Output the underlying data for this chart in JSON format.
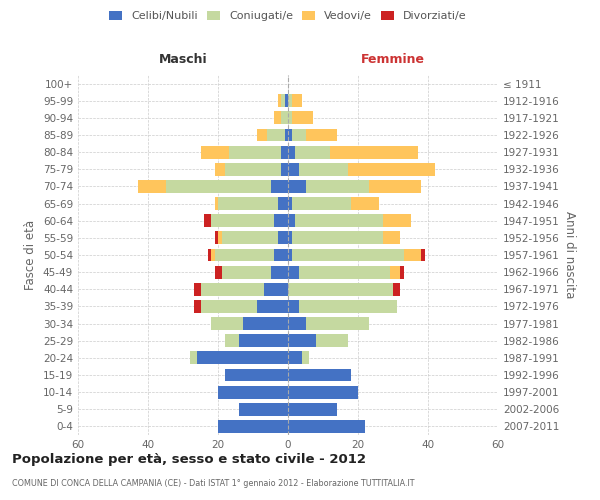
{
  "age_groups": [
    "0-4",
    "5-9",
    "10-14",
    "15-19",
    "20-24",
    "25-29",
    "30-34",
    "35-39",
    "40-44",
    "45-49",
    "50-54",
    "55-59",
    "60-64",
    "65-69",
    "70-74",
    "75-79",
    "80-84",
    "85-89",
    "90-94",
    "95-99",
    "100+"
  ],
  "birth_years": [
    "2007-2011",
    "2002-2006",
    "1997-2001",
    "1992-1996",
    "1987-1991",
    "1982-1986",
    "1977-1981",
    "1972-1976",
    "1967-1971",
    "1962-1966",
    "1957-1961",
    "1952-1956",
    "1947-1951",
    "1942-1946",
    "1937-1941",
    "1932-1936",
    "1927-1931",
    "1922-1926",
    "1917-1921",
    "1912-1916",
    "≤ 1911"
  ],
  "maschi_celibi": [
    20,
    14,
    20,
    18,
    26,
    14,
    13,
    9,
    7,
    5,
    4,
    3,
    4,
    3,
    5,
    2,
    2,
    1,
    0,
    1,
    0
  ],
  "maschi_coniugati": [
    0,
    0,
    0,
    0,
    2,
    4,
    9,
    16,
    18,
    14,
    17,
    16,
    18,
    17,
    30,
    16,
    15,
    5,
    2,
    1,
    0
  ],
  "maschi_vedovi": [
    0,
    0,
    0,
    0,
    0,
    0,
    0,
    0,
    0,
    0,
    1,
    1,
    0,
    1,
    8,
    3,
    8,
    3,
    2,
    1,
    0
  ],
  "maschi_divorziati": [
    0,
    0,
    0,
    0,
    0,
    0,
    0,
    2,
    2,
    2,
    1,
    1,
    2,
    0,
    0,
    0,
    0,
    0,
    0,
    0,
    0
  ],
  "femmine_nubili": [
    22,
    14,
    20,
    18,
    4,
    8,
    5,
    3,
    0,
    3,
    1,
    1,
    2,
    1,
    5,
    3,
    2,
    1,
    0,
    0,
    0
  ],
  "femmine_coniugate": [
    0,
    0,
    0,
    0,
    2,
    9,
    18,
    28,
    30,
    26,
    32,
    26,
    25,
    17,
    18,
    14,
    10,
    4,
    1,
    1,
    0
  ],
  "femmine_vedove": [
    0,
    0,
    0,
    0,
    0,
    0,
    0,
    0,
    0,
    3,
    5,
    5,
    8,
    8,
    15,
    25,
    25,
    9,
    6,
    3,
    0
  ],
  "femmine_divorziate": [
    0,
    0,
    0,
    0,
    0,
    0,
    0,
    0,
    2,
    1,
    1,
    0,
    0,
    0,
    0,
    0,
    0,
    0,
    0,
    0,
    0
  ],
  "color_celibi": "#4472c4",
  "color_coniugati": "#c5d9a0",
  "color_vedovi": "#ffc55c",
  "color_divorziati": "#cc2222",
  "title": "Popolazione per età, sesso e stato civile - 2012",
  "subtitle": "COMUNE DI CONCA DELLA CAMPANIA (CE) - Dati ISTAT 1° gennaio 2012 - Elaborazione TUTTITALIA.IT",
  "label_maschi": "Maschi",
  "label_femmine": "Femmine",
  "ylabel_left": "Fasce di età",
  "ylabel_right": "Anni di nascita",
  "legend_labels": [
    "Celibi/Nubili",
    "Coniugati/e",
    "Vedovi/e",
    "Divorziati/e"
  ],
  "xlim": 60,
  "bg_color": "#ffffff",
  "grid_color": "#cccccc",
  "bar_height": 0.75
}
